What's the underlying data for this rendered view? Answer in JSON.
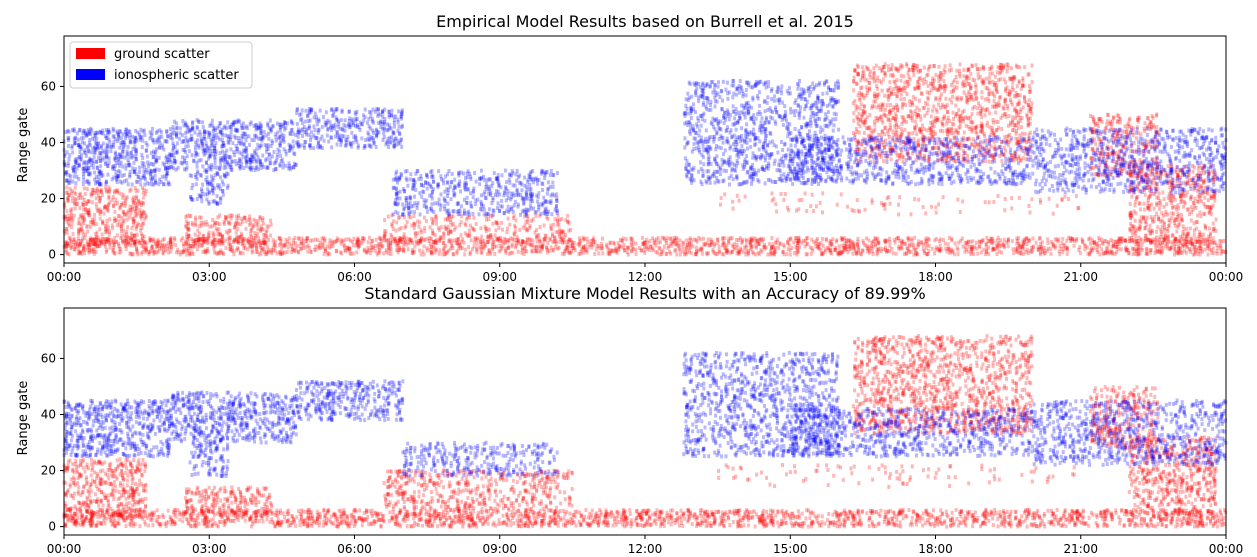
{
  "chart_data": [
    {
      "type": "scatter",
      "title": "Empirical Model Results based on Burrell et al. 2015",
      "xlabel": "",
      "ylabel": "Range gate",
      "xlim": [
        0,
        24
      ],
      "ylim": [
        -3,
        78
      ],
      "grid": false,
      "x_ticks": [
        0,
        3,
        6,
        9,
        12,
        15,
        18,
        21,
        24
      ],
      "x_tick_labels": [
        "00:00",
        "03:00",
        "06:00",
        "09:00",
        "12:00",
        "15:00",
        "18:00",
        "21:00",
        "00:00"
      ],
      "y_ticks": [
        0,
        20,
        40,
        60
      ],
      "y_tick_labels": [
        "0",
        "20",
        "40",
        "60"
      ],
      "legend": {
        "placement": "top-left",
        "entries": [
          {
            "label": "ground scatter",
            "color": "#ff0000"
          },
          {
            "label": "ionospheric scatter",
            "color": "#0000ff"
          }
        ]
      },
      "series": [
        {
          "name": "ground scatter",
          "color": "#ff0000",
          "regions": [
            {
              "x": [
                0.0,
                24.0
              ],
              "y": [
                0,
                6
              ],
              "density": 0.95
            },
            {
              "x": [
                0.0,
                1.7
              ],
              "y": [
                3,
                24
              ],
              "density": 0.75
            },
            {
              "x": [
                2.5,
                4.3
              ],
              "y": [
                4,
                14
              ],
              "density": 0.7
            },
            {
              "x": [
                6.6,
                10.5
              ],
              "y": [
                4,
                14
              ],
              "density": 0.45
            },
            {
              "x": [
                16.3,
                20.0
              ],
              "y": [
                33,
                68
              ],
              "density": 0.6
            },
            {
              "x": [
                21.2,
                22.6
              ],
              "y": [
                28,
                50
              ],
              "density": 0.6
            },
            {
              "x": [
                22.0,
                23.8
              ],
              "y": [
                4,
                32
              ],
              "density": 0.65
            },
            {
              "x": [
                13.5,
                21.0
              ],
              "y": [
                14,
                22
              ],
              "density": 0.1
            }
          ]
        },
        {
          "name": "ionospheric scatter",
          "color": "#0000ff",
          "regions": [
            {
              "x": [
                0.0,
                2.2
              ],
              "y": [
                25,
                45
              ],
              "density": 0.8
            },
            {
              "x": [
                2.2,
                4.8
              ],
              "y": [
                30,
                48
              ],
              "density": 0.75
            },
            {
              "x": [
                4.8,
                7.0
              ],
              "y": [
                38,
                52
              ],
              "density": 0.7
            },
            {
              "x": [
                2.6,
                3.4
              ],
              "y": [
                18,
                30
              ],
              "density": 0.6
            },
            {
              "x": [
                6.8,
                10.2
              ],
              "y": [
                14,
                30
              ],
              "density": 0.6
            },
            {
              "x": [
                12.8,
                16.0
              ],
              "y": [
                25,
                62
              ],
              "density": 0.55
            },
            {
              "x": [
                15.0,
                20.0
              ],
              "y": [
                25,
                42
              ],
              "density": 0.55
            },
            {
              "x": [
                20.0,
                24.0
              ],
              "y": [
                22,
                45
              ],
              "density": 0.55
            }
          ]
        }
      ]
    },
    {
      "type": "scatter",
      "title": "Standard Gaussian Mixture Model Results with an Accuracy of 89.99%",
      "xlabel": "",
      "ylabel": "Range gate",
      "xlim": [
        0,
        24
      ],
      "ylim": [
        -3,
        78
      ],
      "grid": false,
      "x_ticks": [
        0,
        3,
        6,
        9,
        12,
        15,
        18,
        21,
        24
      ],
      "x_tick_labels": [
        "00:00",
        "03:00",
        "06:00",
        "09:00",
        "12:00",
        "15:00",
        "18:00",
        "21:00",
        "00:00"
      ],
      "y_ticks": [
        0,
        20,
        40,
        60
      ],
      "y_tick_labels": [
        "0",
        "20",
        "40",
        "60"
      ],
      "series": [
        {
          "name": "ground scatter",
          "color": "#ff0000",
          "regions": [
            {
              "x": [
                0.0,
                24.0
              ],
              "y": [
                0,
                6
              ],
              "density": 0.95
            },
            {
              "x": [
                0.0,
                1.7
              ],
              "y": [
                3,
                24
              ],
              "density": 0.75
            },
            {
              "x": [
                2.5,
                4.3
              ],
              "y": [
                4,
                14
              ],
              "density": 0.7
            },
            {
              "x": [
                6.6,
                10.5
              ],
              "y": [
                6,
                20
              ],
              "density": 0.55
            },
            {
              "x": [
                16.3,
                20.0
              ],
              "y": [
                33,
                68
              ],
              "density": 0.6
            },
            {
              "x": [
                21.2,
                22.6
              ],
              "y": [
                28,
                50
              ],
              "density": 0.6
            },
            {
              "x": [
                22.0,
                23.8
              ],
              "y": [
                4,
                32
              ],
              "density": 0.65
            },
            {
              "x": [
                13.5,
                21.0
              ],
              "y": [
                14,
                22
              ],
              "density": 0.1
            }
          ]
        },
        {
          "name": "ionospheric scatter",
          "color": "#0000ff",
          "regions": [
            {
              "x": [
                0.0,
                2.2
              ],
              "y": [
                25,
                45
              ],
              "density": 0.8
            },
            {
              "x": [
                2.2,
                4.8
              ],
              "y": [
                30,
                48
              ],
              "density": 0.75
            },
            {
              "x": [
                4.8,
                7.0
              ],
              "y": [
                38,
                52
              ],
              "density": 0.7
            },
            {
              "x": [
                2.6,
                3.4
              ],
              "y": [
                18,
                30
              ],
              "density": 0.6
            },
            {
              "x": [
                7.0,
                10.2
              ],
              "y": [
                18,
                30
              ],
              "density": 0.5
            },
            {
              "x": [
                12.8,
                16.0
              ],
              "y": [
                25,
                62
              ],
              "density": 0.55
            },
            {
              "x": [
                15.0,
                20.0
              ],
              "y": [
                25,
                42
              ],
              "density": 0.55
            },
            {
              "x": [
                20.0,
                24.0
              ],
              "y": [
                22,
                45
              ],
              "density": 0.55
            }
          ]
        }
      ]
    }
  ]
}
